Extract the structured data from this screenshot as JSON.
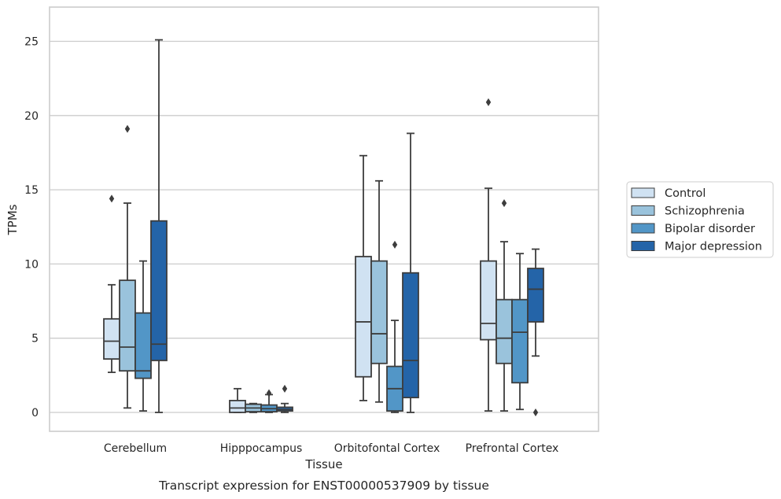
{
  "chart_data": {
    "type": "box",
    "xlabel": "Tissue",
    "ylabel": "TPMs",
    "caption": "Transcript expression for ENST00000537909 by tissue",
    "ylim": [
      -1.2,
      27.3
    ],
    "yticks": [
      0,
      5,
      10,
      15,
      20,
      25
    ],
    "grid": "horizontal",
    "legend_position": "right",
    "categories": [
      "Cerebellum",
      "Hipppocampus",
      "Orbitofontal Cortex",
      "Prefrontal Cortex"
    ],
    "series": [
      {
        "name": "Control",
        "color": "#d0e2f2",
        "boxes": [
          {
            "whislo": 2.7,
            "q1": 3.6,
            "med": 4.8,
            "q3": 6.3,
            "whishi": 8.6,
            "fliers": [
              14.4
            ]
          },
          {
            "whislo": 0.0,
            "q1": 0.0,
            "med": 0.3,
            "q3": 0.8,
            "whishi": 1.6,
            "fliers": []
          },
          {
            "whislo": 0.8,
            "q1": 2.4,
            "med": 6.1,
            "q3": 10.5,
            "whishi": 17.3,
            "fliers": []
          },
          {
            "whislo": 0.1,
            "q1": 4.9,
            "med": 6.0,
            "q3": 10.2,
            "whishi": 15.1,
            "fliers": [
              20.9
            ]
          }
        ]
      },
      {
        "name": "Schizophrenia",
        "color": "#9ac3dc",
        "boxes": [
          {
            "whislo": 0.3,
            "q1": 2.8,
            "med": 4.4,
            "q3": 8.9,
            "whishi": 14.1,
            "fliers": [
              19.1
            ]
          },
          {
            "whislo": 0.0,
            "q1": 0.05,
            "med": 0.3,
            "q3": 0.55,
            "whishi": 0.6,
            "fliers": []
          },
          {
            "whislo": 0.7,
            "q1": 3.3,
            "med": 5.3,
            "q3": 10.2,
            "whishi": 15.6,
            "fliers": []
          },
          {
            "whislo": 0.1,
            "q1": 3.3,
            "med": 5.0,
            "q3": 7.6,
            "whishi": 11.5,
            "fliers": [
              14.1
            ]
          }
        ]
      },
      {
        "name": "Bipolar disorder",
        "color": "#5296c7",
        "boxes": [
          {
            "whislo": 0.1,
            "q1": 2.3,
            "med": 2.8,
            "q3": 6.7,
            "whishi": 10.2,
            "fliers": []
          },
          {
            "whislo": 0.0,
            "q1": 0.05,
            "med": 0.25,
            "q3": 0.5,
            "whishi": 1.2,
            "fliers": [
              1.3
            ]
          },
          {
            "whislo": 0.0,
            "q1": 0.1,
            "med": 1.6,
            "q3": 3.1,
            "whishi": 6.2,
            "fliers": [
              11.3
            ]
          },
          {
            "whislo": 0.2,
            "q1": 2.0,
            "med": 5.4,
            "q3": 7.6,
            "whishi": 10.7,
            "fliers": []
          }
        ]
      },
      {
        "name": "Major depression",
        "color": "#2464a8",
        "boxes": [
          {
            "whislo": 0.0,
            "q1": 3.5,
            "med": 4.6,
            "q3": 12.9,
            "whishi": 25.1,
            "fliers": []
          },
          {
            "whislo": 0.0,
            "q1": 0.1,
            "med": 0.2,
            "q3": 0.35,
            "whishi": 0.6,
            "fliers": [
              1.6
            ]
          },
          {
            "whislo": 0.0,
            "q1": 1.0,
            "med": 3.5,
            "q3": 9.4,
            "whishi": 18.8,
            "fliers": []
          },
          {
            "whislo": 3.8,
            "q1": 6.1,
            "med": 8.3,
            "q3": 9.7,
            "whishi": 11.0,
            "fliers": [
              0.0
            ]
          }
        ]
      }
    ]
  }
}
